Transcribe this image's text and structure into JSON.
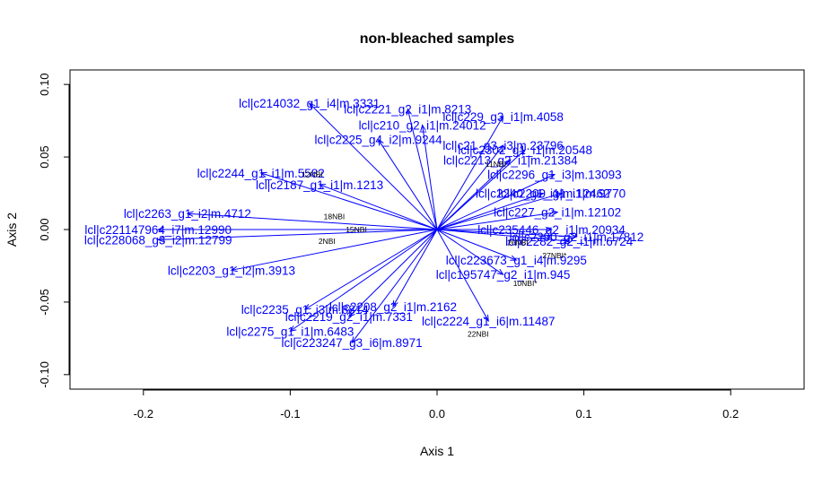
{
  "chart_data": {
    "type": "scatter",
    "title": "non-bleached samples",
    "xlabel": "Axis 1",
    "ylabel": "Axis 2",
    "xlim": [
      -0.25,
      0.25
    ],
    "ylim": [
      -0.11,
      0.11
    ],
    "x_ticks": [
      -0.2,
      -0.1,
      0.0,
      0.1,
      0.2
    ],
    "x_tick_labels": [
      "-0.2",
      "-0.1",
      "0.0",
      "0.1",
      "0.2"
    ],
    "y_ticks": [
      -0.1,
      -0.05,
      0.0,
      0.05,
      0.1
    ],
    "y_tick_labels": [
      "-0.10",
      "-0.05",
      "0.00",
      "0.05",
      "0.10"
    ],
    "colors": {
      "arrows": "#0000ff",
      "samples": "#000000"
    },
    "variables": [
      {
        "label": "lcl|c214032_g1_i4|m.3331",
        "x": -0.087,
        "y": 0.087
      },
      {
        "label": "lcl|c223247_g3_i6|m.8971",
        "x": -0.058,
        "y": -0.078
      },
      {
        "label": "lcl|c235446_g2_i1|m.20934",
        "x": 0.078,
        "y": 0.0
      },
      {
        "label": "lcl|c223673_g1_i4|m.9295",
        "x": 0.054,
        "y": -0.021
      },
      {
        "label": "lcl|c195747_g2_i1|m.945",
        "x": 0.045,
        "y": -0.031
      },
      {
        "label": "lcl|c227_g2_i1|m.12102",
        "x": 0.082,
        "y": 0.012
      },
      {
        "label": "lcl|c228068_g3_i2|m.12799",
        "x": -0.19,
        "y": -0.007
      },
      {
        "label": "lcl|c221147964_i7|m.12990",
        "x": -0.19,
        "y": 0.0
      },
      {
        "label": "lcl|c2224_g1_i6|m.11487",
        "x": 0.035,
        "y": -0.063
      },
      {
        "label": "lcl|c229_g3_i1|m.4058",
        "x": 0.045,
        "y": 0.078
      },
      {
        "label": "lcl|c21_g3_i3|m.23796",
        "x": 0.045,
        "y": 0.058
      },
      {
        "label": "lcl|c2302_g1_i1|m.20548",
        "x": 0.06,
        "y": 0.055
      },
      {
        "label": "lcl|c210_g2_i1|m.24012",
        "x": -0.01,
        "y": 0.072
      },
      {
        "label": "lcl|c2221_g2_i1|m.8213",
        "x": -0.02,
        "y": 0.083
      },
      {
        "label": "lcl|c2296_g1_i3|m.13093",
        "x": 0.08,
        "y": 0.038
      },
      {
        "label": "lcl|c2282_g2_i1|m.6724",
        "x": 0.09,
        "y": -0.008
      },
      {
        "label": "lcl|c2290_g2_i1|m.17812",
        "x": 0.095,
        "y": -0.005
      },
      {
        "label": "lcl|c2240_g1_i1|m.12462",
        "x": 0.072,
        "y": 0.025
      },
      {
        "label": "lcl|c2213_g2_i1|m.21384",
        "x": 0.05,
        "y": 0.048
      },
      {
        "label": "lcl|c2209_g1_i1|m.9770",
        "x": 0.085,
        "y": 0.025
      },
      {
        "label": "lcl|c2225_g4_i2|m.9244",
        "x": -0.04,
        "y": 0.062
      },
      {
        "label": "lcl|c2187_g1_i1|m.1213",
        "x": -0.08,
        "y": 0.031
      },
      {
        "label": "lcl|c2208_g2_i1|m.2162",
        "x": -0.03,
        "y": -0.053
      },
      {
        "label": "lcl|c2275_g1_i1|m.6483",
        "x": -0.1,
        "y": -0.07
      },
      {
        "label": "lcl|c2203_g1_i2|m.3913",
        "x": -0.14,
        "y": -0.028
      },
      {
        "label": "lcl|c2263_g1_i2|m.4712",
        "x": -0.17,
        "y": 0.011
      },
      {
        "label": "lcl|c2244_g1_i1|m.5582",
        "x": -0.12,
        "y": 0.039
      },
      {
        "label": "lcl|c2235_g1_i3|m.8814",
        "x": -0.09,
        "y": -0.055
      },
      {
        "label": "lcl|c2219_g2_i1|m.7331",
        "x": -0.06,
        "y": -0.06
      }
    ],
    "samples": [
      {
        "label": "26NBI",
        "x": 0.055,
        "y": -0.009
      },
      {
        "label": "10NBI*",
        "x": 0.06,
        "y": -0.037
      },
      {
        "label": "27NBI*",
        "x": 0.08,
        "y": -0.018
      },
      {
        "label": "11NBI",
        "x": 0.04,
        "y": 0.045
      },
      {
        "label": "22NBI",
        "x": 0.028,
        "y": -0.072
      },
      {
        "label": "18NBI",
        "x": -0.07,
        "y": 0.009
      },
      {
        "label": "2NBI",
        "x": -0.075,
        "y": -0.008
      },
      {
        "label": "15NBI",
        "x": -0.055,
        "y": 0.0
      },
      {
        "label": "12NBI",
        "x": -0.085,
        "y": 0.038
      }
    ]
  }
}
